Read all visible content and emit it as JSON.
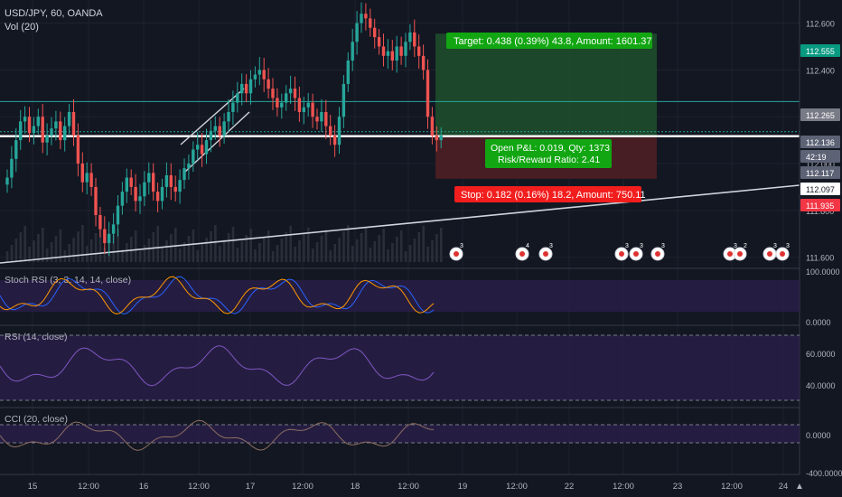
{
  "header": {
    "symbol_line": "USD/JPY, 60, OANDA",
    "volume_line": "Vol (20)"
  },
  "price_axis": {
    "ticks": [
      "112.600",
      "112.400",
      "112.200",
      "112.000",
      "111.800",
      "111.600"
    ],
    "tags": [
      {
        "label": "112.555",
        "color": "#089981"
      },
      {
        "label": "112.265",
        "color": "#787b86"
      },
      {
        "label": "112.136",
        "color": "#5d6275"
      },
      {
        "label": "42:19",
        "color": "#5d6275"
      },
      {
        "label": "112.117",
        "color": "#5d6275"
      },
      {
        "label": "112.097",
        "color": "#ffffff"
      },
      {
        "label": "111.935",
        "color": "#f23645"
      }
    ]
  },
  "time_axis": {
    "labels": [
      "15",
      "12:00",
      "16",
      "12:00",
      "17",
      "12:00",
      "18",
      "12:00",
      "19",
      "12:00",
      "22",
      "12:00",
      "23",
      "12:00",
      "24"
    ]
  },
  "position": {
    "target_text": "Target: 0.438 (0.39%) 43.8, Amount: 1601.37",
    "pnl_text": "Open P&L: 0.019, Qty: 1373",
    "rr_text": "Risk/Reward Ratio: 2.41",
    "stop_text": "Stop: 0.182 (0.16%) 18.2, Amount: 750.11",
    "entry": 112.117,
    "target": 112.555,
    "stop": 111.935
  },
  "events": {
    "badges": [
      "3",
      "4",
      "3",
      "3",
      "3",
      "3",
      "3",
      "2",
      "3",
      "3"
    ]
  },
  "indicators": {
    "stoch": {
      "title": "Stoch RSI (3, 3, 14, 14, close)",
      "ticks": [
        "100.0000",
        "0.0000"
      ]
    },
    "rsi": {
      "title": "RSI (14, close)",
      "ticks": [
        "60.0000",
        "40.0000"
      ]
    },
    "cci": {
      "title": "CCI (20, close)",
      "ticks": [
        "0.0000",
        "-400.0000"
      ]
    }
  },
  "colors": {
    "up": "#26a69a",
    "down": "#ef5350",
    "target_zone": "#1e4d2b",
    "stop_zone": "#4a1f24",
    "indicator_band": "#2a1f4a"
  },
  "chart_data": {
    "type": "candlestick",
    "symbol": "USD/JPY",
    "interval": "60",
    "source": "OANDA",
    "ylim": [
      111.56,
      112.66
    ],
    "candles_close": [
      111.94,
      112.02,
      112.1,
      112.18,
      112.2,
      112.13,
      112.16,
      112.2,
      112.09,
      112.12,
      112.15,
      112.18,
      112.1,
      112.16,
      112.22,
      112.12,
      112.0,
      111.92,
      111.96,
      111.9,
      111.78,
      111.72,
      111.66,
      111.7,
      111.74,
      111.82,
      111.88,
      111.94,
      111.9,
      111.84,
      111.86,
      111.92,
      111.96,
      111.88,
      111.84,
      111.9,
      111.95,
      111.9,
      111.88,
      111.93,
      111.98,
      112.0,
      112.06,
      112.08,
      112.04,
      112.1,
      112.14,
      112.16,
      112.12,
      112.18,
      112.22,
      112.26,
      112.3,
      112.34,
      112.3,
      112.36,
      112.38,
      112.4,
      112.36,
      112.32,
      112.28,
      112.24,
      112.26,
      112.3,
      112.32,
      112.28,
      112.22,
      112.24,
      112.26,
      112.2,
      112.18,
      112.22,
      112.16,
      112.12,
      112.08,
      112.2,
      112.34,
      112.44,
      112.52,
      112.6,
      112.64,
      112.62,
      112.58,
      112.54,
      112.5,
      112.46,
      112.48,
      112.44,
      112.5,
      112.46,
      112.52,
      112.56,
      112.5,
      112.46,
      112.4,
      112.2,
      112.12,
      112.1,
      112.12
    ]
  }
}
